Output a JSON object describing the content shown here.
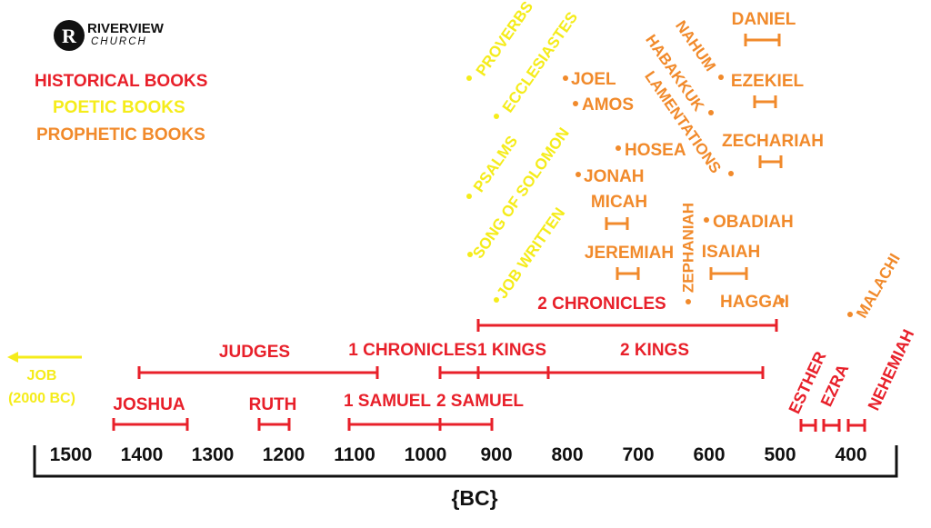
{
  "logo": {
    "initial": "R",
    "name": "RIVERVIEW",
    "subname": "CHURCH"
  },
  "legend": [
    {
      "label": "HISTORICAL BOOKS",
      "color": "#e8202a"
    },
    {
      "label": "POETIC BOOKS",
      "color": "#f5ec1a"
    },
    {
      "label": "PROPHETIC BOOKS",
      "color": "#f18a2b"
    }
  ],
  "colors": {
    "historical": "#e8202a",
    "poetic": "#f5ec1a",
    "prophetic": "#f18a2b",
    "axis": "#111111"
  },
  "axis": {
    "unit_label": "{BC}",
    "ticks": [
      "1500",
      "1400",
      "1300",
      "1200",
      "1100",
      "1000",
      "900",
      "800",
      "700",
      "600",
      "500",
      "400"
    ]
  },
  "job_note": {
    "line1": "JOB",
    "line2": "(2000 BC)"
  },
  "books": {
    "historical": [
      {
        "label": "JOSHUA",
        "start": 1450,
        "end": 1350
      },
      {
        "label": "JUDGES",
        "start": 1400,
        "end": 1100
      },
      {
        "label": "RUTH",
        "start": 1260,
        "end": 1220
      },
      {
        "label": "1 SAMUEL",
        "start": 1140,
        "end": 1010
      },
      {
        "label": "1 CHRONICLES",
        "start": 1010,
        "end": 970
      },
      {
        "label": "2 SAMUEL",
        "start": 1010,
        "end": 950
      },
      {
        "label": "1 KINGS",
        "start": 970,
        "end": 870
      },
      {
        "label": "2 KINGS",
        "start": 870,
        "end": 560
      },
      {
        "label": "2 CHRONICLES",
        "start": 970,
        "end": 540
      },
      {
        "label": "ESTHER",
        "start": 500,
        "end": 480
      },
      {
        "label": "EZRA",
        "start": 470,
        "end": 450
      },
      {
        "label": "NEHEMIAH",
        "start": 440,
        "end": 420
      }
    ],
    "poetic": [
      "PROVERBS",
      "ECCLESIASTES",
      "PSALMS",
      "SONG OF SOLOMON",
      "JOB WRITTEN"
    ],
    "prophetic": [
      {
        "label": "JOEL"
      },
      {
        "label": "AMOS"
      },
      {
        "label": "HOSEA"
      },
      {
        "label": "JONAH"
      },
      {
        "label": "MICAH",
        "start": 760,
        "end": 740
      },
      {
        "label": "JEREMIAH",
        "start": 750,
        "end": 720
      },
      {
        "label": "ZEPHANIAH"
      },
      {
        "label": "OBADIAH"
      },
      {
        "label": "ISAIAH",
        "start": 630,
        "end": 580
      },
      {
        "label": "HAGGAI"
      },
      {
        "label": "NAHUM"
      },
      {
        "label": "HABAKKUK"
      },
      {
        "label": "LAMENTATIONS"
      },
      {
        "label": "DANIEL",
        "start": 580,
        "end": 540
      },
      {
        "label": "EZEKIEL",
        "start": 570,
        "end": 550
      },
      {
        "label": "ZECHARIAH",
        "start": 560,
        "end": 540
      },
      {
        "label": "MALACHI"
      }
    ]
  }
}
